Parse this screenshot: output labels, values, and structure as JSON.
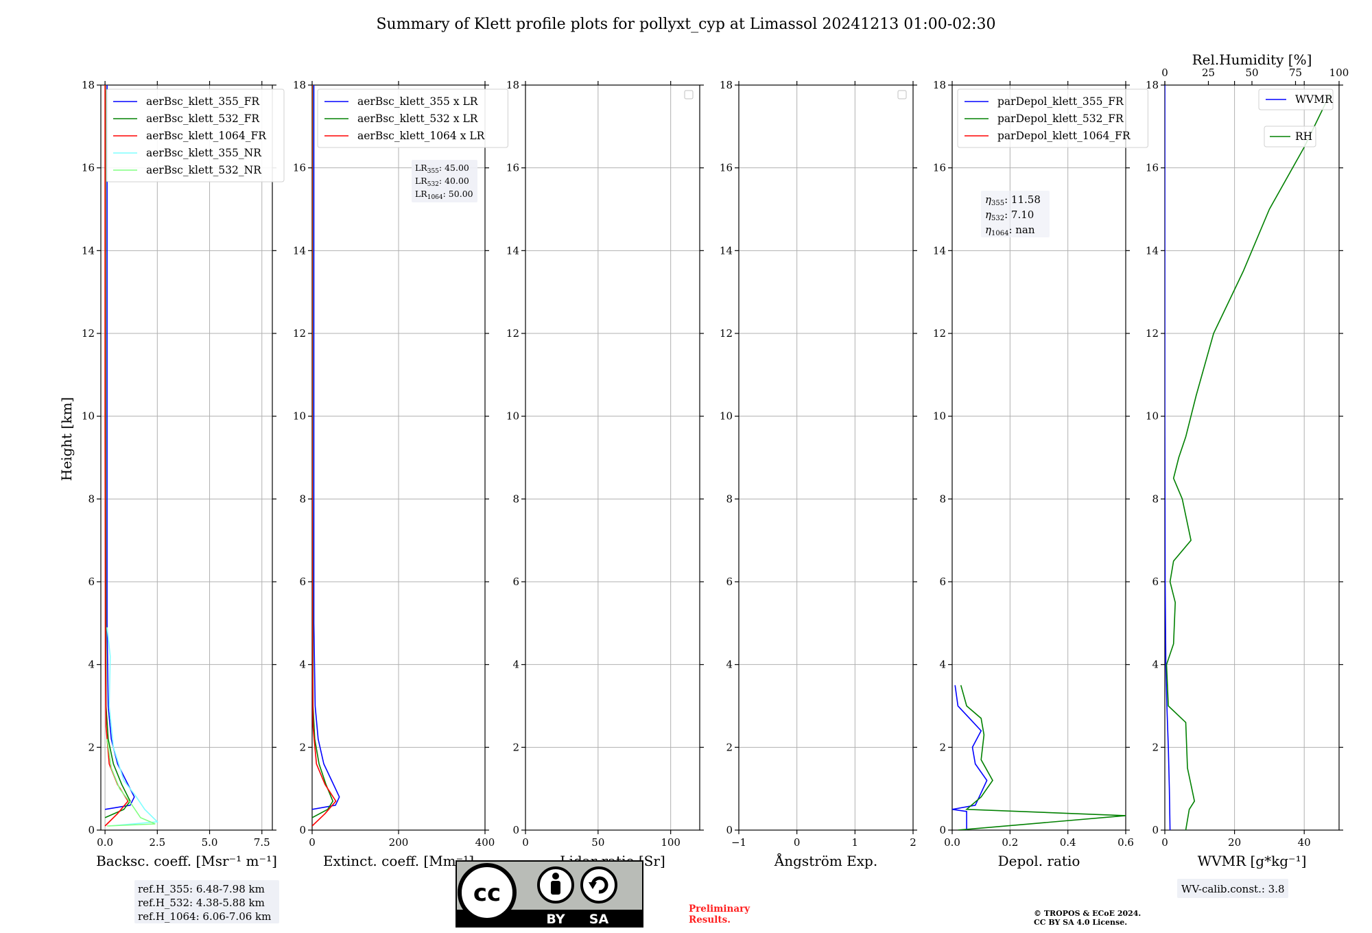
{
  "title": "Summary of Klett profile plots for pollyxt_cyp at Limassol 20241213 01:00-02:30",
  "ylabel": "Height [km]",
  "colors": {
    "c355": "#0000ff",
    "c532": "#008000",
    "c1064": "#ff0000",
    "c355nr": "#7fffff",
    "c532nr": "#80ff80",
    "note_red": "#ff2020",
    "box": "#eef0f6"
  },
  "chart_data": [
    {
      "type": "line",
      "xlabel": "Backsc. coeff. [Msr⁻¹ m⁻¹]",
      "xlim": [
        -0.2,
        8.0
      ],
      "ylim": [
        0,
        18
      ],
      "xticks": [
        "0.0",
        "2.5",
        "5.0",
        "7.5"
      ],
      "yticks": [
        "0",
        "2",
        "4",
        "6",
        "8",
        "10",
        "12",
        "14",
        "16",
        "18"
      ],
      "legend": [
        "aerBsc_klett_355_FR",
        "aerBsc_klett_532_FR",
        "aerBsc_klett_1064_FR",
        "aerBsc_klett_355_NR",
        "aerBsc_klett_532_NR"
      ],
      "series": [
        {
          "name": "aerBsc_klett_355_FR",
          "color": "c355",
          "points": [
            [
              0.0,
              0.5
            ],
            [
              1.2,
              0.6
            ],
            [
              1.4,
              0.8
            ],
            [
              1.0,
              1.2
            ],
            [
              0.6,
              1.6
            ],
            [
              0.3,
              2.2
            ],
            [
              0.15,
              3.0
            ],
            [
              0.1,
              5
            ],
            [
              0.1,
              10
            ],
            [
              0.1,
              18
            ]
          ]
        },
        {
          "name": "aerBsc_klett_532_FR",
          "color": "c532",
          "points": [
            [
              0.0,
              0.3
            ],
            [
              0.9,
              0.5
            ],
            [
              1.2,
              0.7
            ],
            [
              0.8,
              1.1
            ],
            [
              0.4,
              1.6
            ],
            [
              0.15,
              2.2
            ],
            [
              0.05,
              3
            ],
            [
              0.03,
              8
            ],
            [
              0.02,
              18
            ]
          ]
        },
        {
          "name": "aerBsc_klett_1064_FR",
          "color": "c1064",
          "points": [
            [
              0.0,
              0.1
            ],
            [
              0.6,
              0.4
            ],
            [
              1.1,
              0.7
            ],
            [
              0.6,
              1.1
            ],
            [
              0.2,
              1.6
            ],
            [
              0.05,
              2.5
            ],
            [
              0.02,
              4
            ],
            [
              0.0,
              10
            ],
            [
              0.0,
              18
            ]
          ]
        },
        {
          "name": "aerBsc_klett_355_NR",
          "color": "c355nr",
          "points": [
            [
              0.2,
              0.1
            ],
            [
              2.5,
              0.2
            ],
            [
              1.9,
              0.5
            ],
            [
              1.5,
              0.8
            ],
            [
              0.9,
              1.2
            ],
            [
              0.4,
              2
            ],
            [
              0.2,
              3
            ],
            [
              0.25,
              4.2
            ],
            [
              0.1,
              4.9
            ]
          ]
        },
        {
          "name": "aerBsc_klett_532_NR",
          "color": "c532nr",
          "points": [
            [
              0.1,
              0.1
            ],
            [
              2.4,
              0.15
            ],
            [
              1.7,
              0.3
            ],
            [
              1.3,
              0.6
            ],
            [
              0.7,
              1.0
            ],
            [
              0.3,
              1.5
            ],
            [
              0.1,
              2.2
            ]
          ]
        }
      ],
      "notes": [
        "ref.H_355: 6.48-7.98 km",
        "ref.H_532: 4.38-5.88 km",
        "ref.H_1064: 6.06-7.06 km"
      ]
    },
    {
      "type": "line",
      "xlabel": "Extinct. coeff. [Mm⁻¹]",
      "xlim": [
        0,
        400
      ],
      "ylim": [
        0,
        18
      ],
      "xticks": [
        "0",
        "200",
        "400"
      ],
      "yticks": [
        "0",
        "2",
        "4",
        "6",
        "8",
        "10",
        "12",
        "14",
        "16",
        "18"
      ],
      "legend": [
        "aerBsc_klett_355 x LR",
        "aerBsc_klett_532 x LR",
        "aerBsc_klett_1064 x LR"
      ],
      "lr_labels": [
        {
          "sub": "355",
          "val": ": 45.00"
        },
        {
          "sub": "532",
          "val": ": 40.00"
        },
        {
          "sub": "1064",
          "val": ": 50.00"
        }
      ],
      "series": [
        {
          "name": "aerBsc_klett_355 x LR",
          "color": "c355",
          "points": [
            [
              0,
              0.5
            ],
            [
              54,
              0.6
            ],
            [
              63,
              0.8
            ],
            [
              45,
              1.2
            ],
            [
              27,
              1.6
            ],
            [
              14,
              2.2
            ],
            [
              7,
              3
            ],
            [
              4,
              5
            ],
            [
              4,
              10
            ],
            [
              4,
              18
            ]
          ]
        },
        {
          "name": "aerBsc_klett_532 x LR",
          "color": "c532",
          "points": [
            [
              0,
              0.3
            ],
            [
              36,
              0.5
            ],
            [
              48,
              0.7
            ],
            [
              32,
              1.1
            ],
            [
              16,
              1.6
            ],
            [
              6,
              2.2
            ],
            [
              2,
              3
            ],
            [
              1,
              8
            ],
            [
              1,
              18
            ]
          ]
        },
        {
          "name": "aerBsc_klett_1064 x LR",
          "color": "c1064",
          "points": [
            [
              0,
              0.1
            ],
            [
              30,
              0.4
            ],
            [
              55,
              0.7
            ],
            [
              30,
              1.1
            ],
            [
              10,
              1.6
            ],
            [
              2,
              2.5
            ],
            [
              1,
              4
            ],
            [
              0,
              10
            ],
            [
              0,
              18
            ]
          ]
        }
      ]
    },
    {
      "type": "line",
      "xlabel": "Lidar ratio [Sr]",
      "xlim": [
        0,
        120
      ],
      "ylim": [
        0,
        18
      ],
      "xticks": [
        "0",
        "50",
        "100"
      ],
      "yticks": [
        "0",
        "2",
        "4",
        "6",
        "8",
        "10",
        "12",
        "14",
        "16",
        "18"
      ],
      "series": []
    },
    {
      "type": "line",
      "xlabel": "Ångström Exp.",
      "xlim": [
        -1,
        2
      ],
      "ylim": [
        0,
        18
      ],
      "xticks": [
        "−1",
        "0",
        "1",
        "2"
      ],
      "yticks": [
        "0",
        "2",
        "4",
        "6",
        "8",
        "10",
        "12",
        "14",
        "16",
        "18"
      ],
      "series": []
    },
    {
      "type": "line",
      "xlabel": "Depol. ratio",
      "xlim": [
        0.0,
        0.6
      ],
      "ylim": [
        0,
        18
      ],
      "xticks": [
        "0.0",
        "0.2",
        "0.4",
        "0.6"
      ],
      "yticks": [
        "0",
        "2",
        "4",
        "6",
        "8",
        "10",
        "12",
        "14",
        "16",
        "18"
      ],
      "legend": [
        "parDepol_klett_355_FR",
        "parDepol_klett_532_FR",
        "parDepol_klett_1064_FR"
      ],
      "eta_labels": [
        {
          "sub": "355",
          "val": ": 11.58"
        },
        {
          "sub": "532",
          "val": ": 7.10"
        },
        {
          "sub": "1064",
          "val": ": nan"
        }
      ],
      "series": [
        {
          "name": "parDepol_klett_355_FR",
          "color": "c355",
          "points": [
            [
              0.05,
              0
            ],
            [
              0.05,
              0.45
            ],
            [
              0.0,
              0.5
            ],
            [
              0.08,
              0.6
            ],
            [
              0.1,
              0.9
            ],
            [
              0.12,
              1.2
            ],
            [
              0.08,
              1.6
            ],
            [
              0.07,
              2.0
            ],
            [
              0.1,
              2.4
            ],
            [
              0.06,
              2.7
            ],
            [
              0.02,
              3.0
            ],
            [
              0.01,
              3.5
            ]
          ]
        },
        {
          "name": "parDepol_klett_532_FR",
          "color": "c532",
          "points": [
            [
              0.02,
              0
            ],
            [
              0.6,
              0.35
            ],
            [
              0.05,
              0.5
            ],
            [
              0.1,
              0.8
            ],
            [
              0.14,
              1.2
            ],
            [
              0.1,
              1.7
            ],
            [
              0.11,
              2.3
            ],
            [
              0.1,
              2.7
            ],
            [
              0.05,
              3.0
            ],
            [
              0.03,
              3.5
            ]
          ]
        }
      ]
    },
    {
      "type": "line",
      "xlabel": "WVMR [g*kg⁻¹]",
      "x2label": "Rel.Humidity [%]",
      "xlim": [
        0,
        50
      ],
      "x2lim": [
        0,
        100
      ],
      "ylim": [
        0,
        18
      ],
      "xticks": [
        "0",
        "20",
        "40"
      ],
      "x2ticks": [
        "0",
        "25",
        "50",
        "75",
        "100"
      ],
      "yticks": [
        "0",
        "2",
        "4",
        "6",
        "8",
        "10",
        "12",
        "14",
        "16",
        "18"
      ],
      "legend": [
        "WVMR",
        "RH"
      ],
      "series": [
        {
          "name": "WVMR",
          "color": "c355",
          "points": [
            [
              1.5,
              0
            ],
            [
              1.3,
              1
            ],
            [
              1.0,
              2
            ],
            [
              0.6,
              3
            ],
            [
              0.3,
              4
            ],
            [
              0.1,
              6
            ],
            [
              0.0,
              10
            ],
            [
              0.0,
              18
            ]
          ]
        },
        {
          "name": "RH",
          "color": "c532",
          "points": [
            [
              12,
              0
            ],
            [
              14,
              0.5
            ],
            [
              17,
              0.7
            ],
            [
              13,
              1.5
            ],
            [
              12,
              2.6
            ],
            [
              2,
              3.0
            ],
            [
              1,
              4.0
            ],
            [
              5,
              4.5
            ],
            [
              6,
              5.5
            ],
            [
              3,
              6.0
            ],
            [
              5,
              6.5
            ],
            [
              15,
              7.0
            ],
            [
              10,
              8.0
            ],
            [
              5,
              8.5
            ],
            [
              8,
              9.0
            ],
            [
              12,
              9.5
            ],
            [
              18,
              10.5
            ],
            [
              28,
              12
            ],
            [
              45,
              13.5
            ],
            [
              60,
              15
            ],
            [
              80,
              16.5
            ],
            [
              95,
              17.8
            ]
          ]
        }
      ],
      "notes": [
        "WV-calib.const.: 3.8"
      ]
    }
  ],
  "footer": {
    "license_badge": {
      "by": "BY",
      "sa": "SA"
    },
    "preliminary": [
      "Preliminary",
      "Results."
    ],
    "copyright": [
      "© TROPOS & ECoE 2024.",
      "CC BY SA 4.0 License."
    ]
  }
}
